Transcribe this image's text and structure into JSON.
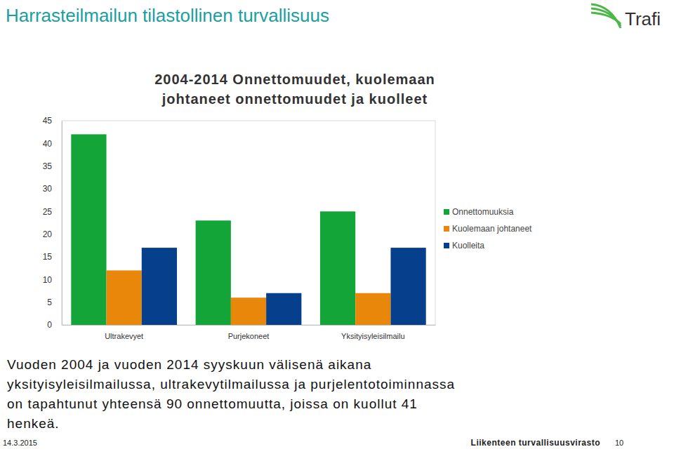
{
  "page": {
    "heading": "Harrasteilmailun tilastollinen turvallisuus",
    "logo": "Trafi",
    "text_lines": [
      "Vuoden 2004 ja vuoden 2014 syyskuun välisenä aikana",
      "yksityisyleisilmailussa, ultrakevytilmailussa ja purjelentotoiminnassa",
      "on tapahtunut yhteensä 90 onnettomuutta, joissa on kuollut 41",
      "henkeä."
    ],
    "footer": {
      "date": "14.3.2015",
      "organization": "Liikenteen turvallisuusvirasto",
      "page_number": 10
    }
  },
  "chart_data": {
    "type": "bar",
    "title": [
      "2004-2014 Onnettomuudet, kuolemaan",
      "johtaneet onnettomuudet ja kuolleet"
    ],
    "categories": [
      "Ultrakevyet",
      "Purjekoneet",
      "Yksityisyleisilmailu"
    ],
    "series": [
      {
        "name": "Onnettomuuksia",
        "color": "#13a538",
        "values": [
          42,
          23,
          25
        ]
      },
      {
        "name": "Kuolemaan johtaneet",
        "color": "#e8870a",
        "values": [
          12,
          6,
          7
        ]
      },
      {
        "name": "Kuolleita",
        "color": "#063f8c",
        "values": [
          17,
          7,
          17
        ]
      }
    ],
    "ylim": [
      0,
      45
    ],
    "yticks": [
      0,
      5,
      10,
      15,
      20,
      25,
      30,
      35,
      40,
      45
    ],
    "grid": false,
    "legend": "right"
  }
}
